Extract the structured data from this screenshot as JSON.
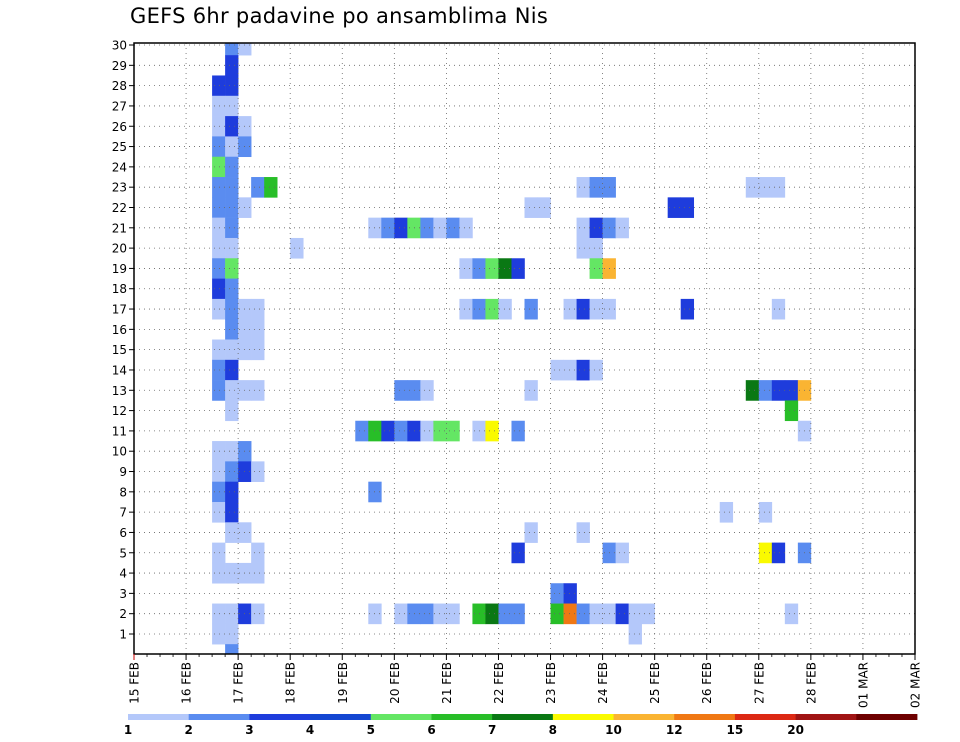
{
  "chart_data": {
    "type": "heatmap",
    "title": "GEFS 6hr padavine po ansamblima Nis",
    "x_tick_labels": [
      "15 FEB",
      "16 FEB",
      "17 FEB",
      "18 FEB",
      "19 FEB",
      "20 FEB",
      "21 FEB",
      "22 FEB",
      "23 FEB",
      "24 FEB",
      "25 FEB",
      "26 FEB",
      "27 FEB",
      "28 FEB",
      "01 MAR",
      "02 MAR"
    ],
    "x_steps_total": 60,
    "y_range": [
      1,
      30
    ],
    "y_tick_labels": [
      "1",
      "2",
      "3",
      "4",
      "5",
      "6",
      "7",
      "8",
      "9",
      "10",
      "11",
      "12",
      "13",
      "14",
      "15",
      "16",
      "17",
      "18",
      "19",
      "20",
      "21",
      "22",
      "23",
      "24",
      "25",
      "26",
      "27",
      "28",
      "29",
      "30"
    ],
    "grid": true,
    "legend": {
      "position": "bottom",
      "thresholds": [
        "1",
        "2",
        "3",
        "4",
        "5",
        "6",
        "7",
        "8",
        "10",
        "12",
        "15",
        "20"
      ],
      "colors": [
        "#b4c8fa",
        "#5a8cf0",
        "#1e3cdc",
        "#1446d2",
        "#64e664",
        "#28be28",
        "#0a7814",
        "#fafa00",
        "#fab432",
        "#f07814",
        "#dc2814",
        "#a01414",
        "#6e0000"
      ]
    },
    "cells": [
      [
        30,
        7,
        2
      ],
      [
        30,
        8,
        1
      ],
      [
        29,
        7,
        3
      ],
      [
        28,
        6,
        3
      ],
      [
        28,
        7,
        3
      ],
      [
        27,
        6,
        1
      ],
      [
        27,
        7,
        1
      ],
      [
        26,
        6,
        1
      ],
      [
        26,
        7,
        3
      ],
      [
        26,
        8,
        1
      ],
      [
        25,
        6,
        2
      ],
      [
        25,
        7,
        1
      ],
      [
        25,
        8,
        2
      ],
      [
        24,
        6,
        5
      ],
      [
        24,
        7,
        2
      ],
      [
        23,
        6,
        2
      ],
      [
        23,
        7,
        2
      ],
      [
        23,
        9,
        2
      ],
      [
        23,
        10,
        6
      ],
      [
        23,
        34,
        1
      ],
      [
        23,
        35,
        2
      ],
      [
        23,
        36,
        2
      ],
      [
        23,
        47,
        1
      ],
      [
        23,
        48,
        1
      ],
      [
        23,
        49,
        1
      ],
      [
        22,
        6,
        2
      ],
      [
        22,
        7,
        2
      ],
      [
        22,
        8,
        1
      ],
      [
        22,
        30,
        1
      ],
      [
        22,
        31,
        1
      ],
      [
        22,
        41,
        3
      ],
      [
        22,
        42,
        3
      ],
      [
        21,
        6,
        1
      ],
      [
        21,
        7,
        2
      ],
      [
        21,
        18,
        1
      ],
      [
        21,
        19,
        2
      ],
      [
        21,
        20,
        3
      ],
      [
        21,
        21,
        5
      ],
      [
        21,
        22,
        2
      ],
      [
        21,
        23,
        1
      ],
      [
        21,
        24,
        2
      ],
      [
        21,
        25,
        1
      ],
      [
        21,
        34,
        1
      ],
      [
        21,
        35,
        3
      ],
      [
        21,
        36,
        2
      ],
      [
        21,
        37,
        1
      ],
      [
        20,
        6,
        1
      ],
      [
        20,
        7,
        1
      ],
      [
        20,
        12,
        1
      ],
      [
        20,
        34,
        1
      ],
      [
        20,
        35,
        1
      ],
      [
        19,
        6,
        2
      ],
      [
        19,
        7,
        5
      ],
      [
        19,
        25,
        1
      ],
      [
        19,
        26,
        2
      ],
      [
        19,
        27,
        5
      ],
      [
        19,
        28,
        7
      ],
      [
        19,
        29,
        3
      ],
      [
        19,
        35,
        5
      ],
      [
        19,
        36,
        9
      ],
      [
        18,
        6,
        3
      ],
      [
        18,
        7,
        2
      ],
      [
        17,
        6,
        1
      ],
      [
        17,
        7,
        2
      ],
      [
        17,
        8,
        1
      ],
      [
        17,
        9,
        1
      ],
      [
        17,
        25,
        1
      ],
      [
        17,
        26,
        2
      ],
      [
        17,
        27,
        5
      ],
      [
        17,
        28,
        1
      ],
      [
        17,
        30,
        2
      ],
      [
        17,
        33,
        1
      ],
      [
        17,
        34,
        3
      ],
      [
        17,
        35,
        1
      ],
      [
        17,
        36,
        1
      ],
      [
        17,
        42,
        3
      ],
      [
        17,
        49,
        1
      ],
      [
        16,
        7,
        2
      ],
      [
        16,
        8,
        1
      ],
      [
        16,
        9,
        1
      ],
      [
        15,
        6,
        1
      ],
      [
        15,
        7,
        1
      ],
      [
        15,
        8,
        1
      ],
      [
        15,
        9,
        1
      ],
      [
        14,
        6,
        2
      ],
      [
        14,
        7,
        3
      ],
      [
        14,
        32,
        1
      ],
      [
        14,
        33,
        1
      ],
      [
        14,
        34,
        3
      ],
      [
        14,
        35,
        1
      ],
      [
        13,
        6,
        2
      ],
      [
        13,
        7,
        1
      ],
      [
        13,
        8,
        1
      ],
      [
        13,
        9,
        1
      ],
      [
        13,
        20,
        2
      ],
      [
        13,
        21,
        2
      ],
      [
        13,
        22,
        1
      ],
      [
        13,
        30,
        1
      ],
      [
        13,
        47,
        7
      ],
      [
        13,
        48,
        2
      ],
      [
        13,
        49,
        3
      ],
      [
        13,
        50,
        3
      ],
      [
        13,
        51,
        9
      ],
      [
        12,
        7,
        1
      ],
      [
        12,
        50,
        6
      ],
      [
        11,
        17,
        2
      ],
      [
        11,
        18,
        6
      ],
      [
        11,
        19,
        3
      ],
      [
        11,
        20,
        2
      ],
      [
        11,
        21,
        3
      ],
      [
        11,
        22,
        1
      ],
      [
        11,
        23,
        5
      ],
      [
        11,
        24,
        5
      ],
      [
        11,
        26,
        1
      ],
      [
        11,
        27,
        8
      ],
      [
        11,
        29,
        2
      ],
      [
        11,
        51,
        1
      ],
      [
        10,
        6,
        1
      ],
      [
        10,
        7,
        1
      ],
      [
        10,
        8,
        2
      ],
      [
        9,
        6,
        1
      ],
      [
        9,
        7,
        2
      ],
      [
        9,
        8,
        3
      ],
      [
        9,
        9,
        1
      ],
      [
        8,
        6,
        2
      ],
      [
        8,
        7,
        3
      ],
      [
        8,
        18,
        2
      ],
      [
        7,
        6,
        1
      ],
      [
        7,
        7,
        3
      ],
      [
        7,
        45,
        1
      ],
      [
        7,
        48,
        1
      ],
      [
        6,
        7,
        1
      ],
      [
        6,
        8,
        1
      ],
      [
        6,
        30,
        1
      ],
      [
        6,
        34,
        1
      ],
      [
        5,
        6,
        1
      ],
      [
        5,
        9,
        1
      ],
      [
        5,
        29,
        3
      ],
      [
        5,
        36,
        2
      ],
      [
        5,
        37,
        1
      ],
      [
        5,
        48,
        8
      ],
      [
        5,
        49,
        3
      ],
      [
        5,
        51,
        2
      ],
      [
        4,
        6,
        1
      ],
      [
        4,
        7,
        1
      ],
      [
        4,
        8,
        1
      ],
      [
        4,
        9,
        1
      ],
      [
        3,
        32,
        2
      ],
      [
        3,
        33,
        3
      ],
      [
        2,
        6,
        1
      ],
      [
        2,
        7,
        1
      ],
      [
        2,
        8,
        3
      ],
      [
        2,
        9,
        1
      ],
      [
        2,
        18,
        1
      ],
      [
        2,
        20,
        1
      ],
      [
        2,
        21,
        2
      ],
      [
        2,
        22,
        2
      ],
      [
        2,
        23,
        1
      ],
      [
        2,
        24,
        1
      ],
      [
        2,
        26,
        6
      ],
      [
        2,
        27,
        7
      ],
      [
        2,
        28,
        2
      ],
      [
        2,
        29,
        2
      ],
      [
        2,
        32,
        6
      ],
      [
        2,
        33,
        10
      ],
      [
        2,
        34,
        2
      ],
      [
        2,
        35,
        1
      ],
      [
        2,
        36,
        1
      ],
      [
        2,
        37,
        3
      ],
      [
        2,
        38,
        1
      ],
      [
        2,
        39,
        1
      ],
      [
        2,
        50,
        1
      ],
      [
        1,
        6,
        1
      ],
      [
        1,
        7,
        1
      ],
      [
        1,
        38,
        1
      ],
      [
        0,
        7,
        2
      ]
    ]
  }
}
